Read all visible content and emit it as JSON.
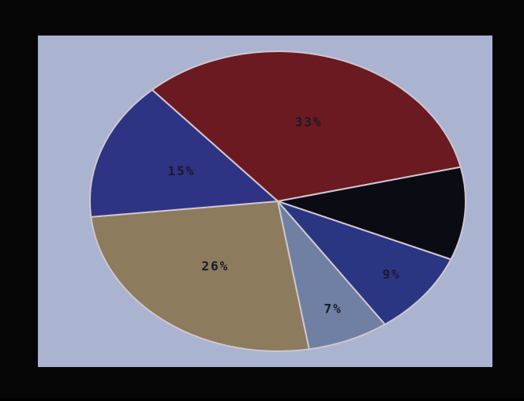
{
  "chart_data": {
    "type": "pie",
    "values": [
      33,
      10,
      9,
      7,
      26,
      15
    ],
    "value_labels": [
      "33%",
      null,
      "9%",
      "7%",
      "26%",
      "15%"
    ],
    "colors": [
      "#6a1a20",
      "#0b0b14",
      "#2a3682",
      "#6f80a2",
      "#8c7b5c",
      "#2f3384"
    ]
  }
}
